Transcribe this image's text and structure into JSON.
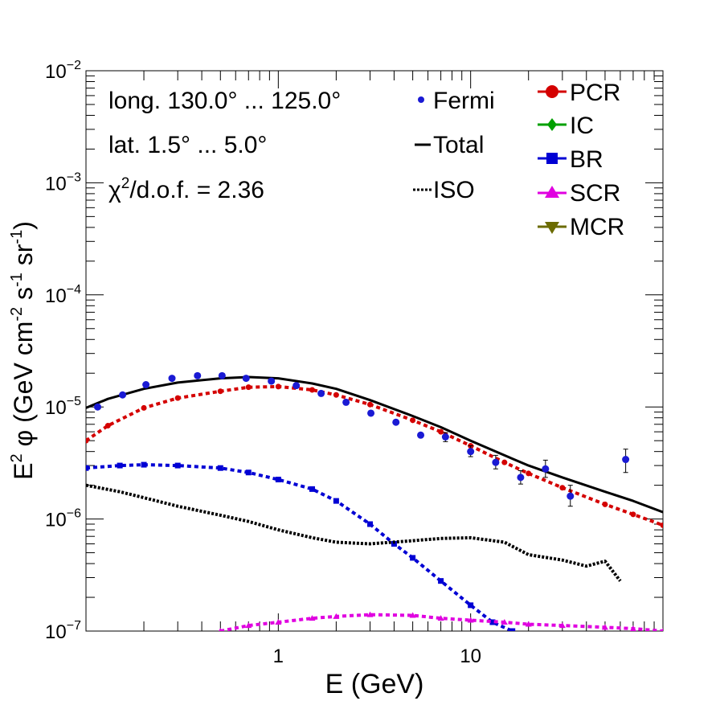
{
  "chart_data": {
    "type": "line",
    "xscale": "log",
    "yscale": "log",
    "xlabel": "E (GeV)",
    "ylabel_parts": {
      "base": "E",
      "sup_2": "2",
      "phi": " φ (GeV cm",
      "sup_m2": "-2",
      "s": " s",
      "sup_m1a": "-1",
      "sr": " sr",
      "sup_m1b": "-1",
      "close": ")"
    },
    "xlim": [
      0.1,
      100
    ],
    "ylim": [
      1e-07,
      0.01
    ],
    "x_tick_labels": [
      {
        "value": 1,
        "label": "1"
      },
      {
        "value": 10,
        "label": "10"
      }
    ],
    "y_tick_labels": [
      {
        "value": 1e-07,
        "base": "10",
        "exp": "−7"
      },
      {
        "value": 1e-06,
        "base": "10",
        "exp": "−6"
      },
      {
        "value": 1e-05,
        "base": "10",
        "exp": "−5"
      },
      {
        "value": 0.0001,
        "base": "10",
        "exp": "−4"
      },
      {
        "value": 0.001,
        "base": "10",
        "exp": "−3"
      },
      {
        "value": 0.01,
        "base": "10",
        "exp": "−2"
      }
    ],
    "annotations": {
      "longitude": "long. 130.0° ... 125.0°",
      "latitude": "lat. 1.5° ... 5.0°",
      "chi2_chi": "χ",
      "chi2_sup": "2",
      "chi2_rest": "/d.o.f. = 2.36"
    },
    "legend": [
      {
        "label": "Fermi",
        "color": "#1a1ad4",
        "marker": "dot"
      },
      {
        "label": "Total",
        "color": "#000000",
        "marker": "line"
      },
      {
        "label": "ISO",
        "color": "#000000",
        "marker": "dotted"
      },
      {
        "label": "PCR",
        "color": "#d40000",
        "marker": "circle"
      },
      {
        "label": "IC",
        "color": "#00a000",
        "marker": "diamond"
      },
      {
        "label": "BR",
        "color": "#0000d4",
        "marker": "square"
      },
      {
        "label": "SCR",
        "color": "#e000e0",
        "marker": "triangle-up"
      },
      {
        "label": "MCR",
        "color": "#6b6b00",
        "marker": "triangle-down"
      }
    ],
    "fermi_points": [
      {
        "x": 0.115,
        "y": 1e-05
      },
      {
        "x": 0.155,
        "y": 1.28e-05
      },
      {
        "x": 0.205,
        "y": 1.58e-05
      },
      {
        "x": 0.28,
        "y": 1.8e-05
      },
      {
        "x": 0.38,
        "y": 1.9e-05
      },
      {
        "x": 0.51,
        "y": 1.9e-05
      },
      {
        "x": 0.68,
        "y": 1.8e-05
      },
      {
        "x": 0.92,
        "y": 1.7e-05
      },
      {
        "x": 1.24,
        "y": 1.55e-05
      },
      {
        "x": 1.67,
        "y": 1.32e-05
      },
      {
        "x": 2.25,
        "y": 1.1e-05
      },
      {
        "x": 3.03,
        "y": 8.8e-06
      },
      {
        "x": 4.09,
        "y": 7.3e-06
      },
      {
        "x": 5.5,
        "y": 5.6e-06
      },
      {
        "x": 7.4,
        "y": 5.4e-06,
        "err": [
          4.9e-06,
          5.9e-06
        ]
      },
      {
        "x": 10.0,
        "y": 4e-06,
        "err": [
          3.6e-06,
          4.5e-06
        ]
      },
      {
        "x": 13.5,
        "y": 3.2e-06,
        "err": [
          2.8e-06,
          3.7e-06
        ]
      },
      {
        "x": 18.2,
        "y": 2.35e-06,
        "err": [
          2.05e-06,
          2.7e-06
        ]
      },
      {
        "x": 24.5,
        "y": 2.8e-06,
        "err": [
          2.35e-06,
          3.35e-06
        ]
      },
      {
        "x": 33.0,
        "y": 1.6e-06,
        "err": [
          1.3e-06,
          2e-06
        ]
      },
      {
        "x": 64.0,
        "y": 3.4e-06,
        "err": [
          2.6e-06,
          4.2e-06
        ]
      }
    ],
    "series": [
      {
        "name": "Total",
        "color": "#000000",
        "style": "solid",
        "x": [
          0.1,
          0.13,
          0.2,
          0.3,
          0.5,
          0.7,
          1.0,
          1.5,
          2.0,
          3.0,
          5.0,
          7.0,
          10,
          15,
          20,
          30,
          50,
          70,
          100
        ],
        "y": [
          9.8e-06,
          1.18e-05,
          1.45e-05,
          1.65e-05,
          1.8e-05,
          1.85e-05,
          1.8e-05,
          1.62e-05,
          1.45e-05,
          1.15e-05,
          8.3e-06,
          6.6e-06,
          5e-06,
          3.7e-06,
          3e-06,
          2.35e-06,
          1.75e-06,
          1.45e-06,
          1.15e-06
        ]
      },
      {
        "name": "PCR",
        "color": "#d40000",
        "style": "dashed",
        "x": [
          0.1,
          0.13,
          0.2,
          0.3,
          0.5,
          0.7,
          1.0,
          1.5,
          2.0,
          3.0,
          5.0,
          7.0,
          10,
          15,
          20,
          30,
          50,
          70,
          100
        ],
        "y": [
          5e-06,
          6.8e-06,
          9.8e-06,
          1.2e-05,
          1.38e-05,
          1.5e-05,
          1.52e-05,
          1.42e-05,
          1.28e-05,
          1.05e-05,
          7.6e-06,
          6e-06,
          4.5e-06,
          3.2e-06,
          2.55e-06,
          1.9e-06,
          1.35e-06,
          1.1e-06,
          8.8e-07
        ]
      },
      {
        "name": "BR",
        "color": "#0000d4",
        "style": "dashed",
        "x": [
          0.1,
          0.15,
          0.2,
          0.3,
          0.5,
          0.7,
          1.0,
          1.5,
          2.0,
          3.0,
          4.0,
          5.0,
          7.0,
          10,
          13,
          16.5
        ],
        "y": [
          2.85e-06,
          3e-06,
          3.05e-06,
          3e-06,
          2.85e-06,
          2.6e-06,
          2.25e-06,
          1.85e-06,
          1.45e-06,
          9e-07,
          6e-07,
          4.5e-07,
          2.8e-07,
          1.7e-07,
          1.2e-07,
          1e-07
        ]
      },
      {
        "name": "ISO",
        "color": "#000000",
        "style": "dotted",
        "x": [
          0.1,
          0.15,
          0.2,
          0.3,
          0.5,
          0.7,
          1.0,
          1.5,
          2.0,
          3.0,
          5.0,
          7.0,
          10,
          15,
          20,
          30,
          40,
          50,
          60
        ],
        "y": [
          2e-06,
          1.75e-06,
          1.55e-06,
          1.3e-06,
          1.08e-06,
          9.5e-07,
          8e-07,
          6.8e-07,
          6.2e-07,
          6e-07,
          6.4e-07,
          6.7e-07,
          6.8e-07,
          6.2e-07,
          4.8e-07,
          4.3e-07,
          3.8e-07,
          4.2e-07,
          2.8e-07
        ]
      },
      {
        "name": "SCR",
        "color": "#e000e0",
        "style": "dashed",
        "x": [
          0.5,
          0.7,
          1.0,
          1.5,
          2.0,
          3.0,
          5.0,
          7.0,
          10,
          15,
          20,
          30,
          50,
          70,
          100
        ],
        "y": [
          1e-07,
          1.12e-07,
          1.2e-07,
          1.3e-07,
          1.35e-07,
          1.4e-07,
          1.38e-07,
          1.3e-07,
          1.25e-07,
          1.2e-07,
          1.15e-07,
          1.12e-07,
          1.08e-07,
          1.05e-07,
          1e-07
        ]
      }
    ]
  }
}
